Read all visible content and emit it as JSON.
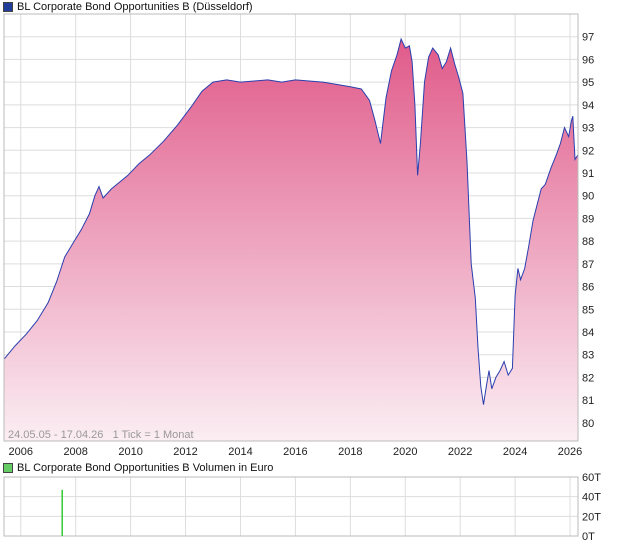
{
  "colors": {
    "line": "#2a3fae",
    "fill_top": "#e05a8a",
    "fill_bottom": "#fbeef3",
    "grid": "#dddddd",
    "volume_bar": "#33cc33",
    "legend_price": "#1f3d99",
    "legend_volume": "#66cc66"
  },
  "legend_price_label": "BL Corporate Bond Opportunities B (Düsseldorf)",
  "legend_volume_label": "BL Corporate Bond Opportunities B Volumen in Euro",
  "info_text": "24.05.05 - 17.04.26   1 Tick = 1 Monat",
  "chart_data": [
    {
      "type": "area",
      "title": "BL Corporate Bond Opportunities B (Düsseldorf)",
      "y_axis_side": "right",
      "ylim": [
        79.2,
        98
      ],
      "yticks": [
        80,
        81,
        82,
        83,
        84,
        85,
        86,
        87,
        88,
        89,
        90,
        91,
        92,
        93,
        94,
        95,
        96,
        97
      ],
      "xlim": [
        2005.39,
        2026.29
      ],
      "xticks": [
        "2006",
        "2008",
        "2010",
        "2012",
        "2014",
        "2016",
        "2018",
        "2020",
        "2022",
        "2024",
        "2026"
      ],
      "series": [
        {
          "name": "BL Corporate Bond Opportunities B (Düsseldorf)",
          "points": [
            [
              2005.39,
              82.8
            ],
            [
              2005.8,
              83.4
            ],
            [
              2006.2,
              83.9
            ],
            [
              2006.6,
              84.5
            ],
            [
              2007.0,
              85.3
            ],
            [
              2007.3,
              86.2
            ],
            [
              2007.6,
              87.3
            ],
            [
              2007.9,
              87.9
            ],
            [
              2008.2,
              88.5
            ],
            [
              2008.5,
              89.2
            ],
            [
              2008.7,
              90.0
            ],
            [
              2008.85,
              90.4
            ],
            [
              2009.0,
              89.9
            ],
            [
              2009.3,
              90.3
            ],
            [
              2009.6,
              90.6
            ],
            [
              2009.9,
              90.9
            ],
            [
              2010.3,
              91.4
            ],
            [
              2010.7,
              91.8
            ],
            [
              2011.2,
              92.4
            ],
            [
              2011.7,
              93.1
            ],
            [
              2012.2,
              93.9
            ],
            [
              2012.6,
              94.6
            ],
            [
              2013.0,
              95.0
            ],
            [
              2013.5,
              95.1
            ],
            [
              2014.0,
              95.0
            ],
            [
              2014.5,
              95.05
            ],
            [
              2015.0,
              95.1
            ],
            [
              2015.5,
              95.0
            ],
            [
              2016.0,
              95.1
            ],
            [
              2016.5,
              95.05
            ],
            [
              2017.0,
              95.0
            ],
            [
              2017.5,
              94.9
            ],
            [
              2018.0,
              94.8
            ],
            [
              2018.4,
              94.7
            ],
            [
              2018.7,
              94.2
            ],
            [
              2018.9,
              93.3
            ],
            [
              2019.1,
              92.3
            ],
            [
              2019.3,
              94.3
            ],
            [
              2019.5,
              95.5
            ],
            [
              2019.7,
              96.2
            ],
            [
              2019.85,
              96.9
            ],
            [
              2020.0,
              96.5
            ],
            [
              2020.15,
              96.6
            ],
            [
              2020.25,
              95.9
            ],
            [
              2020.35,
              94.0
            ],
            [
              2020.45,
              90.9
            ],
            [
              2020.55,
              92.3
            ],
            [
              2020.7,
              95.0
            ],
            [
              2020.85,
              96.1
            ],
            [
              2021.0,
              96.5
            ],
            [
              2021.2,
              96.2
            ],
            [
              2021.35,
              95.6
            ],
            [
              2021.5,
              95.9
            ],
            [
              2021.65,
              96.5
            ],
            [
              2021.8,
              95.8
            ],
            [
              2021.95,
              95.2
            ],
            [
              2022.1,
              94.5
            ],
            [
              2022.25,
              91.5
            ],
            [
              2022.4,
              87.0
            ],
            [
              2022.55,
              85.5
            ],
            [
              2022.65,
              83.3
            ],
            [
              2022.75,
              81.6
            ],
            [
              2022.85,
              80.8
            ],
            [
              2022.95,
              81.6
            ],
            [
              2023.05,
              82.3
            ],
            [
              2023.15,
              81.5
            ],
            [
              2023.3,
              82.0
            ],
            [
              2023.45,
              82.3
            ],
            [
              2023.6,
              82.7
            ],
            [
              2023.75,
              82.1
            ],
            [
              2023.9,
              82.4
            ],
            [
              2024.0,
              85.6
            ],
            [
              2024.1,
              86.8
            ],
            [
              2024.2,
              86.3
            ],
            [
              2024.35,
              86.8
            ],
            [
              2024.5,
              87.8
            ],
            [
              2024.65,
              88.9
            ],
            [
              2024.8,
              89.6
            ],
            [
              2024.95,
              90.3
            ],
            [
              2025.1,
              90.5
            ],
            [
              2025.3,
              91.2
            ],
            [
              2025.5,
              91.8
            ],
            [
              2025.65,
              92.3
            ],
            [
              2025.8,
              93.0
            ],
            [
              2025.95,
              92.6
            ],
            [
              2026.05,
              93.3
            ],
            [
              2026.1,
              93.5
            ],
            [
              2026.18,
              91.6
            ],
            [
              2026.29,
              91.8
            ]
          ]
        }
      ]
    },
    {
      "type": "bar",
      "title": "BL Corporate Bond Opportunities B Volumen in Euro",
      "y_axis_side": "right",
      "ylim": [
        0,
        60000
      ],
      "ytick_labels": [
        "60T",
        "40T",
        "20T",
        "0T"
      ],
      "ytick_values": [
        60000,
        40000,
        20000,
        0
      ],
      "series": [
        {
          "name": "BL Corporate Bond Opportunities B Volumen in Euro",
          "x": [
            2007.5
          ],
          "values": [
            47000
          ]
        }
      ]
    }
  ]
}
